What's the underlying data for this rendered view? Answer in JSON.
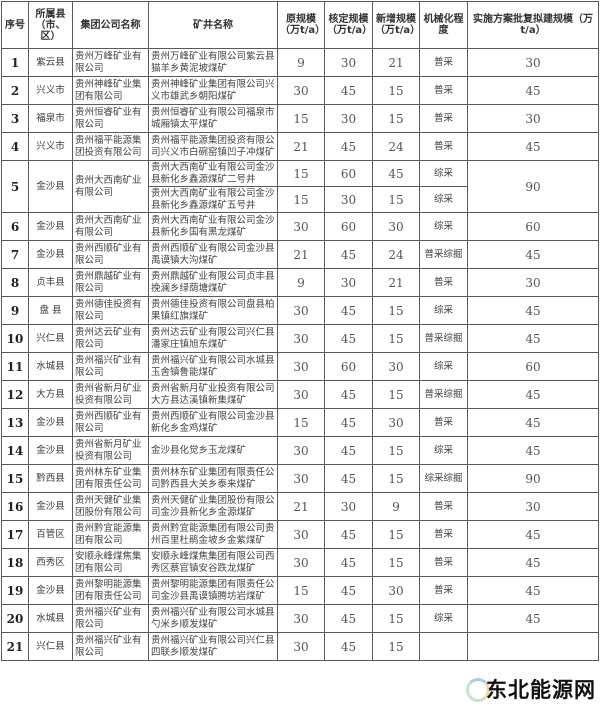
{
  "headers": [
    "序号",
    "所属县（市、区）",
    "集团公司名称",
    "矿井名称",
    "原规模（万t/a）",
    "核定规模（万t/a）",
    "新增规模（万t/a）",
    "机械化程度",
    "实施方案批复拟建规模（万t/a）"
  ],
  "rows": [
    {
      "no": "1",
      "county": "紫云县",
      "company": "贵州万峰矿业有限公司",
      "mines": [
        {
          "name": "贵州万峰矿业有限公司紫云县猫羊乡黄泥坡煤矿",
          "orig": "9",
          "approved": "30",
          "added": "21",
          "mech": "普采"
        }
      ],
      "planned": "30"
    },
    {
      "no": "2",
      "county": "兴义市",
      "company": "贵州神峰矿业集团有限公司",
      "mines": [
        {
          "name": "贵州神峰矿业集团有限公司兴义市雄武乡朝阳煤矿",
          "orig": "30",
          "approved": "45",
          "added": "15",
          "mech": "普采"
        }
      ],
      "planned": "45"
    },
    {
      "no": "3",
      "county": "福泉市",
      "company": "贵州恒睿矿业有限公司",
      "mines": [
        {
          "name": "贵州恒睿矿业有限公司福泉市城厢镇太平煤矿",
          "orig": "15",
          "approved": "30",
          "added": "15",
          "mech": "普采"
        }
      ],
      "planned": "30"
    },
    {
      "no": "4",
      "county": "兴义市",
      "company": "贵州福平能源集团投资有限公司",
      "mines": [
        {
          "name": "贵州福平能源集团投资有限公司兴义市白碗窑镇凹子冲煤矿",
          "orig": "21",
          "approved": "45",
          "added": "24",
          "mech": "普采"
        }
      ],
      "planned": "45"
    },
    {
      "no": "5",
      "county": "金沙县",
      "company": "贵州大西南矿业有限公司",
      "mines": [
        {
          "name": "贵州大西南矿业有限公司金沙县新化乡鑫源煤矿二号井",
          "orig": "15",
          "approved": "60",
          "added": "45",
          "mech": "综采"
        },
        {
          "name": "贵州大西南矿业有限公司金沙县新化乡鑫源煤矿五号井",
          "orig": "15",
          "approved": "30",
          "added": "15",
          "mech": "综采"
        }
      ],
      "planned": "90"
    },
    {
      "no": "6",
      "county": "金沙县",
      "company": "贵州大西南矿业有限公司",
      "mines": [
        {
          "name": "贵州大西南矿业有限公司金沙县新化乡国有黑龙煤矿",
          "orig": "30",
          "approved": "60",
          "added": "30",
          "mech": "综采"
        }
      ],
      "planned": "60"
    },
    {
      "no": "7",
      "county": "金沙县",
      "company": "贵州西顺矿业有限公司",
      "mines": [
        {
          "name": "贵州西顺矿业有限公司金沙县禹谟镇大沟煤矿",
          "orig": "21",
          "approved": "45",
          "added": "24",
          "mech": "普采综掘"
        }
      ],
      "planned": "45"
    },
    {
      "no": "8",
      "county": "贞丰县",
      "company": "贵州鼎越矿业有限公司",
      "mines": [
        {
          "name": "贵州鼎越矿业有限公司贞丰县挽澜乡绿荫塘煤矿",
          "orig": "9",
          "approved": "30",
          "added": "21",
          "mech": "普采"
        }
      ],
      "planned": "30"
    },
    {
      "no": "9",
      "county": "盘 县",
      "company": "贵州德佳投资有限公司",
      "mines": [
        {
          "name": "贵州德佳投资有限公司盘县柏果镇红旗煤矿",
          "orig": "30",
          "approved": "45",
          "added": "15",
          "mech": "综采"
        }
      ],
      "planned": "45"
    },
    {
      "no": "10",
      "county": "兴仁县",
      "company": "贵州达云矿业有限公司",
      "mines": [
        {
          "name": "贵州达云矿业有限公司兴仁县潘家庄镇旭东煤矿",
          "orig": "30",
          "approved": "45",
          "added": "15",
          "mech": "普采综掘"
        }
      ],
      "planned": "45"
    },
    {
      "no": "11",
      "county": "水城县",
      "company": "贵州福兴矿业有限公司",
      "mines": [
        {
          "name": "贵州福兴矿业有限公司水城县玉舍镇鲁能煤矿",
          "orig": "30",
          "approved": "60",
          "added": "30",
          "mech": "综采"
        }
      ],
      "planned": "60"
    },
    {
      "no": "12",
      "county": "大方县",
      "company": "贵州省新月矿业投资有限公司",
      "mines": [
        {
          "name": "贵州省新月矿业投资有限公司大方县达溪镇新集煤矿",
          "orig": "30",
          "approved": "45",
          "added": "15",
          "mech": "普采综掘"
        }
      ],
      "planned": "45"
    },
    {
      "no": "13",
      "county": "金沙县",
      "company": "贵州西顺矿业有限公司",
      "mines": [
        {
          "name": "贵州西顺矿业有限公司金沙县新化乡金鸡煤矿",
          "orig": "15",
          "approved": "45",
          "added": "30",
          "mech": "普采"
        }
      ],
      "planned": "45"
    },
    {
      "no": "14",
      "county": "金沙县",
      "company": "贵州省新月矿业投资有限公司",
      "mines": [
        {
          "name": "金沙县化觉乡玉龙煤矿",
          "orig": "30",
          "approved": "45",
          "added": "15",
          "mech": "综采"
        }
      ],
      "planned": "45"
    },
    {
      "no": "15",
      "county": "黔西县",
      "company": "贵州林东矿业集团有限责任公司",
      "mines": [
        {
          "name": "贵州林东矿业集团有限责任公司黔西县大关乡泰来煤矿",
          "orig": "30",
          "approved": "45",
          "added": "15",
          "mech": "综采综掘"
        }
      ],
      "planned": "90"
    },
    {
      "no": "16",
      "county": "金沙县",
      "company": "贵州天健矿业集团股份有限公司",
      "mines": [
        {
          "name": "贵州天健矿业集团股份有限公司金沙县新化乡金源煤矿",
          "orig": "21",
          "approved": "30",
          "added": "9",
          "mech": "普采"
        }
      ],
      "planned": "30"
    },
    {
      "no": "17",
      "county": "百管区",
      "company": "贵州黔宜能源集团有限公司",
      "mines": [
        {
          "name": "贵州黔宜能源集团有限公司贵州百里杜鹃金坡乡金紫煤矿",
          "orig": "30",
          "approved": "45",
          "added": "15",
          "mech": "普采"
        }
      ],
      "planned": "45"
    },
    {
      "no": "18",
      "county": "西秀区",
      "company": "安顺永峰煤焦集团有限公司",
      "mines": [
        {
          "name": "安顺永峰煤焦集团有限公司西秀区蔡官镇安谷跌龙煤矿",
          "orig": "30",
          "approved": "45",
          "added": "15",
          "mech": "普采"
        }
      ],
      "planned": "45"
    },
    {
      "no": "19",
      "county": "金沙县",
      "company": "贵州黎明能源集团有限责任公司",
      "mines": [
        {
          "name": "贵州黎明能源集团有限责任公司金沙县禹谟镇腾坊岩煤矿",
          "orig": "15",
          "approved": "45",
          "added": "30",
          "mech": "普采"
        }
      ],
      "planned": "45"
    },
    {
      "no": "20",
      "county": "水城县",
      "company": "贵州福兴矿业有限公司",
      "mines": [
        {
          "name": "贵州福兴矿业有限公司水城县勺米乡顺发煤矿",
          "orig": "30",
          "approved": "45",
          "added": "15",
          "mech": "综采"
        }
      ],
      "planned": "45"
    },
    {
      "no": "21",
      "county": "兴仁县",
      "company": "贵州福兴矿业有限公司",
      "mines": [
        {
          "name": "贵州福兴矿业有限公司兴仁县四联乡顺发煤矿",
          "orig": "30",
          "approved": "45",
          "added": "15",
          "mech": ""
        }
      ],
      "planned": ""
    }
  ],
  "watermark": {
    "text": "东北能源网",
    "subtext": "dbenergy"
  }
}
